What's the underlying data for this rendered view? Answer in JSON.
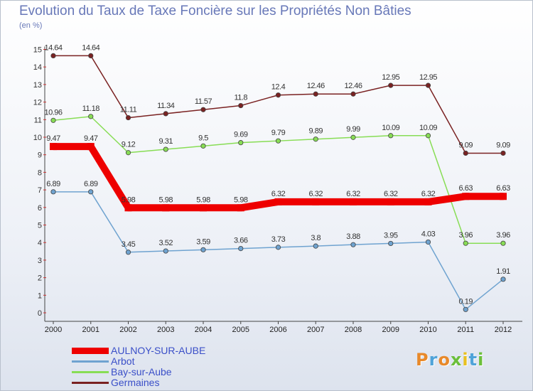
{
  "header": {
    "title": "Evolution du Taux de Taxe Foncière sur les Propriétés Non Bâties",
    "unit": "(en %)"
  },
  "chart_data": {
    "type": "line",
    "title": "Evolution du Taux de Taxe Foncière sur les Propriétés Non Bâties",
    "ylabel": "(en %)",
    "xlabel": "",
    "ylim": [
      0,
      15
    ],
    "yticks": [
      "0",
      "1",
      "2",
      "3",
      "4",
      "5",
      "6",
      "7",
      "8",
      "9",
      "10",
      "11",
      "12",
      "13",
      "14",
      "15"
    ],
    "categories": [
      "2000",
      "2001",
      "2002",
      "2003",
      "2004",
      "2005",
      "2006",
      "2007",
      "2008",
      "2009",
      "2010",
      "2011",
      "2012"
    ],
    "grid": false,
    "legend_position": "bottom-left",
    "series": [
      {
        "name": "Germaines",
        "color": "#7a2222",
        "values": [
          14.64,
          14.64,
          11.11,
          11.34,
          11.57,
          11.8,
          12.4,
          12.46,
          12.46,
          12.95,
          12.95,
          9.09,
          9.09
        ],
        "labels": [
          "14.64",
          "14.64",
          "11.11",
          "11.34",
          "11.57",
          "11.8",
          "12.4",
          "12.46",
          "12.46",
          "12.95",
          "12.95",
          "9.09",
          "9.09"
        ]
      },
      {
        "name": "Bay-sur-Aube",
        "color": "#88dd55",
        "values": [
          10.96,
          11.18,
          9.12,
          9.31,
          9.5,
          9.69,
          9.79,
          9.89,
          9.99,
          10.09,
          10.09,
          3.96,
          3.96
        ],
        "labels": [
          "10.96",
          "11.18",
          "9.12",
          "9.31",
          "9.5",
          "9.69",
          "9.79",
          "9.89",
          "9.99",
          "10.09",
          "10.09",
          "3.96",
          "3.96"
        ]
      },
      {
        "name": "Arbot",
        "color": "#6fa3d0",
        "values": [
          6.89,
          6.89,
          3.45,
          3.52,
          3.59,
          3.66,
          3.73,
          3.8,
          3.88,
          3.95,
          4.03,
          0.19,
          1.91
        ],
        "labels": [
          "6.89",
          "6.89",
          "3.45",
          "3.52",
          "3.59",
          "3.66",
          "3.73",
          "3.8",
          "3.88",
          "3.95",
          "4.03",
          "0.19",
          "1.91"
        ]
      },
      {
        "name": "AULNOY-SUR-AUBE",
        "color": "#ee0000",
        "values": [
          9.47,
          9.47,
          5.98,
          5.98,
          5.98,
          5.98,
          6.32,
          6.32,
          6.32,
          6.32,
          6.32,
          6.63,
          6.63
        ],
        "labels": [
          "9.47",
          "9.47",
          "5.98",
          "5.98",
          "5.98",
          "5.98",
          "6.32",
          "6.32",
          "6.32",
          "6.32",
          "6.32",
          "6.63",
          "6.63"
        ]
      }
    ]
  },
  "legend": [
    {
      "name": "AULNOY-SUR-AUBE",
      "color": "#ee0000"
    },
    {
      "name": "Arbot",
      "color": "#6fa3d0"
    },
    {
      "name": "Bay-sur-Aube",
      "color": "#88dd55"
    },
    {
      "name": "Germaines",
      "color": "#7a2222"
    }
  ],
  "logo": {
    "text": "Proxiti",
    "colors": [
      "#e8892a",
      "#4fa3d9",
      "#e8892a",
      "#6bbf3a",
      "#e8c020",
      "#4fa3d9",
      "#6bbf3a"
    ]
  }
}
